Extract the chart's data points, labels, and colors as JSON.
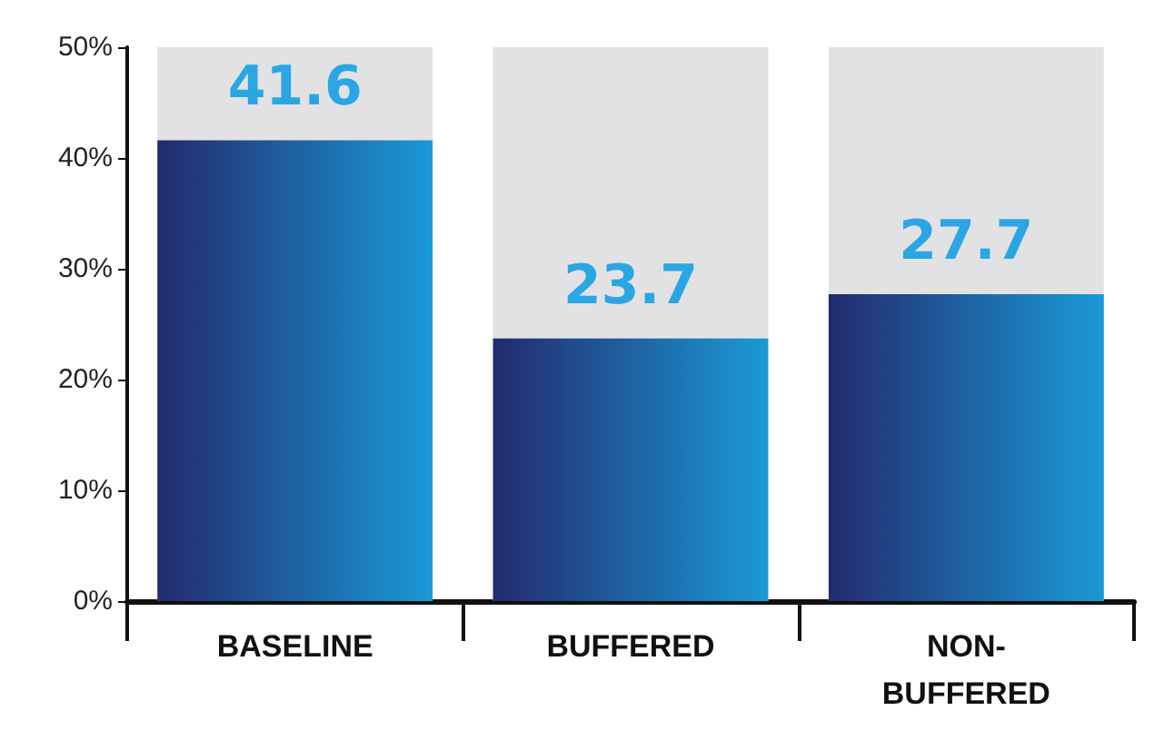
{
  "chart_data": {
    "type": "bar",
    "categories": [
      "BASELINE",
      "BUFFERED",
      "NON-BUFFERED"
    ],
    "values": [
      41.6,
      23.7,
      27.7
    ],
    "color": "#1a9ad6",
    "ylim": [
      0,
      50
    ],
    "yticks": [
      {
        "value": 0,
        "label": "0%"
      },
      {
        "value": 10,
        "label": "10%"
      },
      {
        "value": 20,
        "label": "20%"
      },
      {
        "value": 30,
        "label": "30%"
      },
      {
        "value": 40,
        "label": "40%"
      },
      {
        "value": 50,
        "label": "50%"
      }
    ],
    "data_labels": true,
    "grid": false
  }
}
